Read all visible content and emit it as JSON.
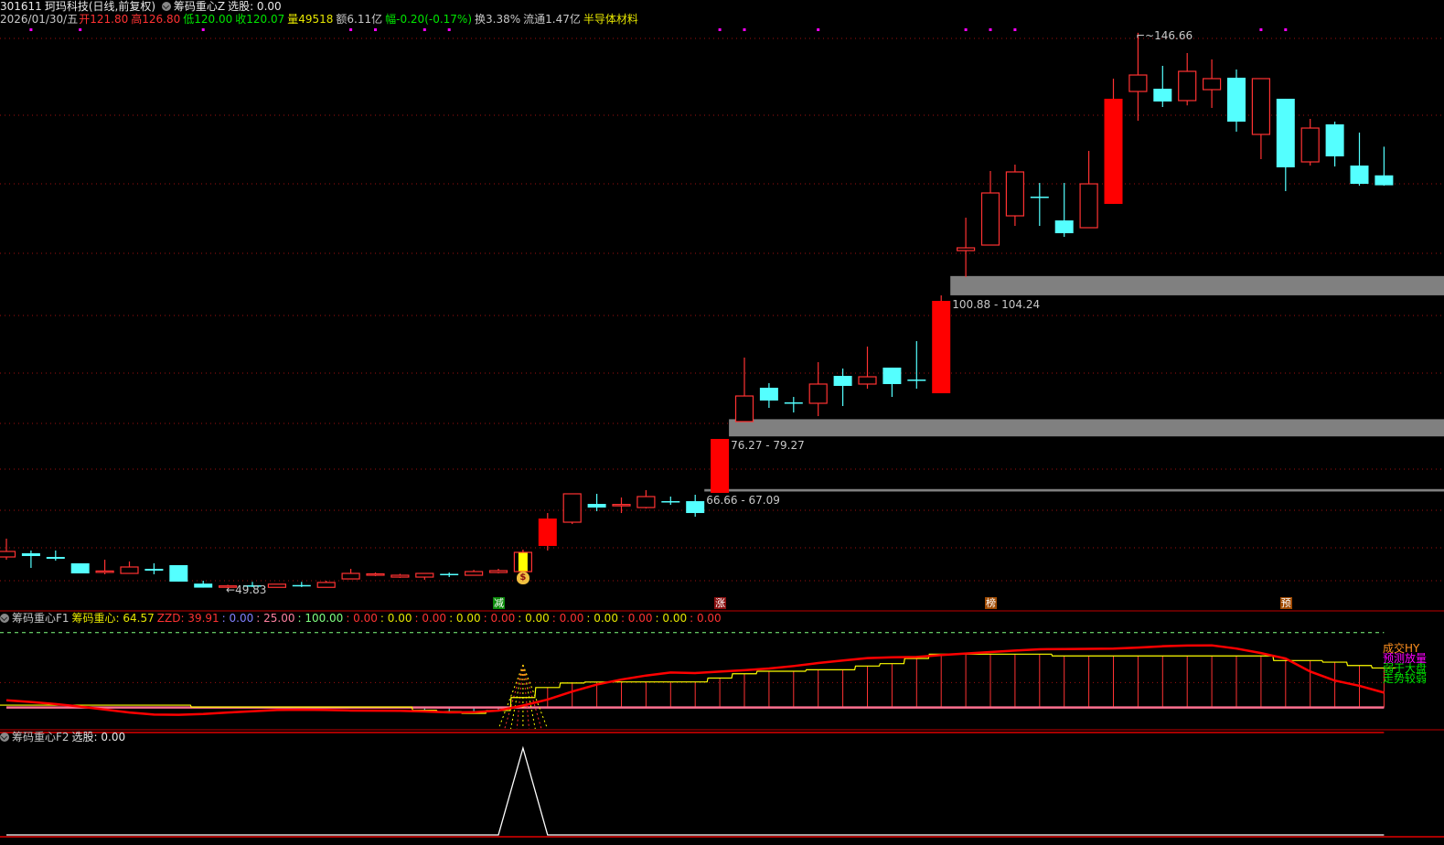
{
  "header": {
    "code": "301611",
    "name": "珂玛科技",
    "period": "(日线,前复权)",
    "indicator": "筹码重心Z",
    "select": "选股: 0.00",
    "date": "2026/01/30/五",
    "open": "开121.80",
    "high": "高126.80",
    "low": "低120.00",
    "close": "收120.07",
    "volume": "量49518",
    "amount": "额6.11亿",
    "change": "幅-0.20(-0.17%)",
    "turnover": "换3.38%",
    "float": "流通1.47亿",
    "sector": "半导体材料"
  },
  "main": {
    "high_label": "146.66",
    "low_label": "49.83",
    "bands": [
      {
        "label": "100.88 - 104.24",
        "low": 100.88,
        "high": 104.24,
        "start_index": 38
      },
      {
        "label": "76.27 - 79.27",
        "low": 76.27,
        "high": 79.27,
        "start_index": 29
      },
      {
        "label": "66.66 - 67.09",
        "low": 66.66,
        "high": 67.09,
        "start_index": 28
      }
    ],
    "signal_tags": [
      {
        "text": "减",
        "index": 20,
        "color": "#0a8a0a"
      },
      {
        "text": "涨",
        "index": 29,
        "color": "#8a1010"
      },
      {
        "text": "榜",
        "index": 40,
        "color": "#a04a00"
      },
      {
        "text": "预",
        "index": 52,
        "color": "#a04a00"
      }
    ],
    "money_bag_index": 21,
    "magenta_dot_indices": [
      1,
      3,
      8,
      14,
      15,
      17,
      18,
      29,
      30,
      33,
      39,
      40,
      41,
      51,
      52
    ]
  },
  "panel_f1": {
    "title": "筹码重心F1",
    "center_label": "筹码重心: 64.57",
    "zzd_label": "ZZD: 39.91",
    "levels": [
      ": 0.00",
      ": 25.00",
      ": 100.00"
    ],
    "extra_values": [
      ": 0.00",
      ": 0.00",
      ": 0.00",
      ": 0.00",
      ": 0.00",
      ": 0.00",
      ": 0.00",
      ": 0.00",
      ": 0.00",
      ": 0.00",
      ": 0.00"
    ],
    "right_labels": [
      {
        "text": "成交HY",
        "color": "#ff9020"
      },
      {
        "text": "预测放量",
        "color": "#ff00ff"
      },
      {
        "text": "弱于大盘",
        "color": "#00e600"
      },
      {
        "text": "走势较弱",
        "color": "#00e600"
      }
    ]
  },
  "panel_f2": {
    "title": "筹码重心F2",
    "select": "选股: 0.00"
  },
  "colors": {
    "up": "#ff3232",
    "up_fill": "#ff0000",
    "down": "#54ffff",
    "special": "#ffff00",
    "center_line": "#ffff00",
    "zzd_line": "#ff0000",
    "level25": "#ff7090",
    "level100": "#80ff80",
    "grid": "#a01010",
    "band": "#808080",
    "magenta": "#ff00ff"
  },
  "chart_data": [
    {
      "type": "candlestick",
      "title": "301611 珂玛科技(日线,前复权)",
      "columns": [
        "open",
        "high",
        "low",
        "close"
      ],
      "filled_up_indices": [
        22,
        29,
        38,
        45
      ],
      "highlight_index": 21,
      "candles": [
        [
          55.25,
          58.44,
          54.77,
          56.21
        ],
        [
          55.89,
          56.37,
          53.34,
          55.41
        ],
        [
          55.25,
          56.37,
          54.61,
          54.93
        ],
        [
          54.14,
          54.14,
          52.38,
          52.38
        ],
        [
          52.7,
          54.77,
          52.22,
          52.8
        ],
        [
          52.38,
          54.46,
          52.38,
          53.5
        ],
        [
          53.18,
          54.14,
          52.22,
          52.86
        ],
        [
          53.82,
          53.82,
          50.95,
          50.95
        ],
        [
          50.6,
          51.1,
          49.9,
          49.9
        ],
        [
          50.1,
          50.4,
          49.83,
          50.2
        ],
        [
          50.3,
          50.9,
          50.0,
          50.2
        ],
        [
          49.95,
          50.5,
          49.9,
          50.5
        ],
        [
          50.35,
          50.9,
          50.0,
          50.3
        ],
        [
          49.95,
          51.1,
          49.9,
          50.8
        ],
        [
          51.42,
          53.18,
          51.42,
          52.38
        ],
        [
          52.22,
          52.54,
          51.9,
          52.3
        ],
        [
          51.74,
          52.3,
          51.6,
          52.06
        ],
        [
          51.74,
          52.4,
          51.27,
          52.38
        ],
        [
          52.3,
          52.54,
          51.74,
          52.2
        ],
        [
          52.06,
          53.0,
          52.06,
          52.7
        ],
        [
          52.54,
          53.18,
          52.38,
          52.86
        ],
        [
          52.7,
          56.53,
          52.7,
          56.05
        ],
        [
          57.17,
          62.91,
          56.37,
          61.95
        ],
        [
          61.31,
          66.26,
          60.99,
          66.26
        ],
        [
          64.5,
          66.26,
          63.23,
          63.87
        ],
        [
          64.34,
          65.62,
          62.91,
          64.4
        ],
        [
          63.87,
          66.9,
          63.71,
          65.78
        ],
        [
          64.98,
          65.78,
          64.34,
          64.9
        ],
        [
          64.98,
          66.1,
          62.27,
          62.91
        ],
        [
          66.42,
          75.83,
          66.42,
          75.83
        ],
        [
          78.86,
          90.02,
          78.86,
          83.32
        ],
        [
          84.76,
          85.56,
          81.25,
          82.53
        ],
        [
          82.21,
          83.16,
          80.45,
          82.1
        ],
        [
          82.05,
          89.22,
          79.81,
          85.4
        ],
        [
          86.83,
          88.11,
          81.57,
          85.08
        ],
        [
          85.4,
          91.94,
          84.6,
          86.67
        ],
        [
          88.27,
          88.27,
          83.16,
          85.4
        ],
        [
          86.19,
          92.89,
          84.6,
          86.1
        ],
        [
          83.8,
          100.87,
          83.8,
          99.91
        ],
        [
          108.68,
          114.42,
          104.06,
          109.16
        ],
        [
          109.64,
          122.56,
          109.64,
          118.73
        ],
        [
          114.74,
          123.67,
          112.99,
          122.4
        ],
        [
          118.09,
          120.48,
          112.99,
          118.0
        ],
        [
          113.94,
          120.48,
          111.07,
          111.71
        ],
        [
          112.67,
          126.07,
          112.67,
          120.32
        ],
        [
          116.82,
          138.67,
          116.82,
          135.16
        ],
        [
          136.43,
          146.66,
          131.33,
          139.3
        ],
        [
          136.91,
          140.9,
          133.72,
          134.68
        ],
        [
          134.84,
          143.13,
          134.0,
          139.94
        ],
        [
          136.75,
          142.02,
          133.56,
          138.67
        ],
        [
          138.83,
          140.26,
          129.42,
          131.17
        ],
        [
          128.94,
          138.67,
          124.63,
          138.67
        ],
        [
          135.16,
          135.16,
          119.05,
          123.2
        ],
        [
          124.15,
          131.65,
          123.51,
          130.05
        ],
        [
          130.69,
          131.17,
          123.35,
          125.11
        ],
        [
          123.51,
          129.26,
          120.0,
          120.32
        ],
        [
          121.8,
          126.8,
          120.0,
          120.07
        ]
      ]
    },
    {
      "type": "line",
      "title": "筹码重心F1",
      "ylim": [
        0,
        100
      ],
      "reference_levels": [
        0,
        25,
        100
      ],
      "series": [
        {
          "name": "筹码重心",
          "values": [
            27.4,
            27.4,
            27.4,
            27.4,
            27.4,
            27.4,
            27.4,
            27.4,
            25.5,
            25.5,
            25.5,
            25.5,
            25.5,
            25.5,
            25.5,
            25.5,
            25.5,
            22.2,
            21.0,
            19.2,
            22.0,
            35.0,
            45.0,
            49.5,
            50.5,
            50.6,
            50.6,
            50.6,
            50.6,
            54.5,
            58.8,
            61.3,
            61.3,
            62.8,
            62.8,
            66.5,
            68.9,
            74.1,
            78.4,
            78.4,
            78.4,
            78.4,
            78.4,
            76.6,
            76.6,
            76.6,
            76.6,
            76.6,
            76.6,
            76.6,
            76.6,
            76.6,
            72.0,
            72.0,
            70.4,
            67.0,
            64.57
          ]
        },
        {
          "name": "ZZD",
          "values": [
            32.3,
            30.5,
            28.5,
            26.0,
            23.0,
            20.0,
            18.0,
            17.7,
            18.5,
            20.0,
            21.3,
            22.5,
            22.8,
            22.5,
            22.0,
            21.8,
            21.7,
            21.0,
            20.1,
            20.3,
            22.0,
            27.0,
            33.0,
            41.0,
            48.0,
            53.0,
            57.0,
            60.0,
            59.5,
            61.0,
            62.3,
            64.0,
            66.5,
            69.5,
            72.0,
            74.5,
            75.2,
            75.6,
            77.5,
            79.0,
            80.5,
            82.0,
            83.3,
            83.5,
            83.7,
            83.9,
            85.0,
            86.3,
            87.0,
            87.2,
            84.0,
            79.5,
            74.0,
            61.0,
            52.0,
            46.7,
            39.91
          ]
        }
      ]
    },
    {
      "type": "line",
      "title": "筹码重心F2",
      "series": [
        {
          "name": "选股",
          "values": [
            0,
            0,
            0,
            0,
            0,
            0,
            0,
            0,
            0,
            0,
            0,
            0,
            0,
            0,
            0,
            0,
            0,
            0,
            0,
            0,
            0,
            1,
            0,
            0,
            0,
            0,
            0,
            0,
            0,
            0,
            0,
            0,
            0,
            0,
            0,
            0,
            0,
            0,
            0,
            0,
            0,
            0,
            0,
            0,
            0,
            0,
            0,
            0,
            0,
            0,
            0,
            0,
            0,
            0,
            0,
            0,
            0
          ]
        }
      ]
    }
  ]
}
